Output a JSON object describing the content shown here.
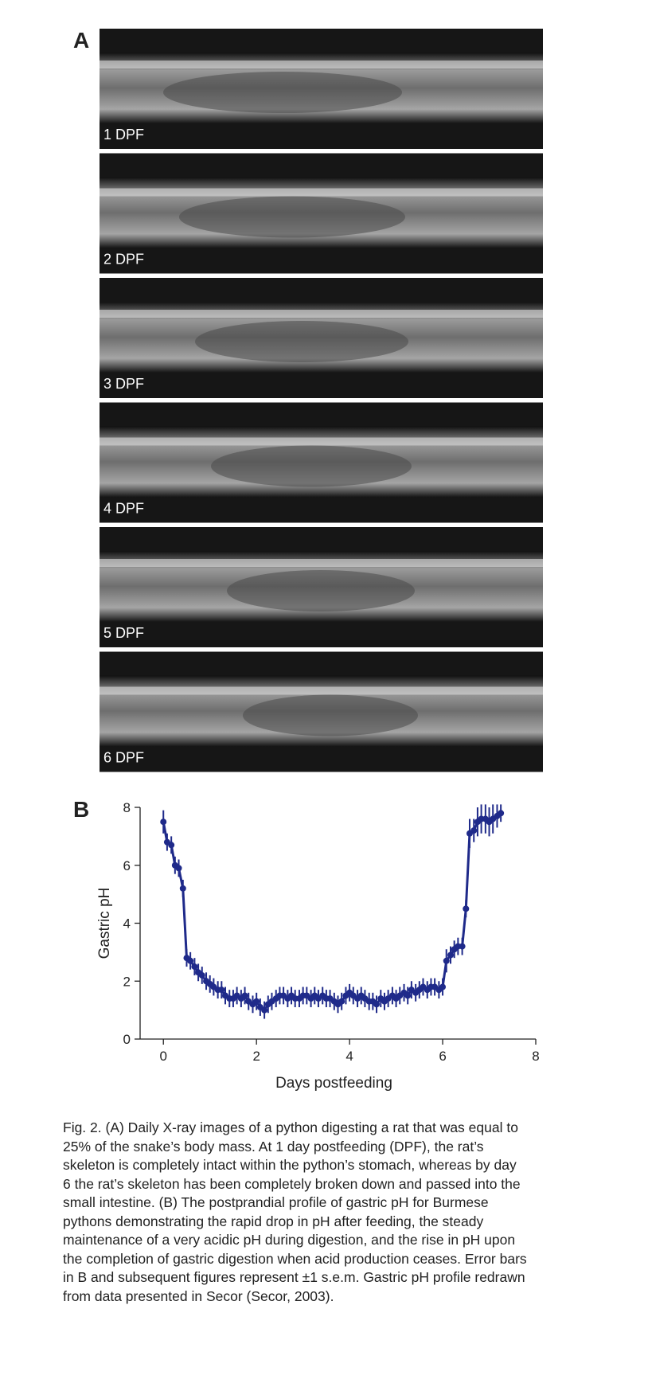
{
  "panel_a": {
    "label": "A",
    "images": [
      "1 DPF",
      "2 DPF",
      "3 DPF",
      "4 DPF",
      "5 DPF",
      "6 DPF"
    ]
  },
  "chart_data": {
    "type": "line",
    "panel_label": "B",
    "xlabel": "Days postfeeding",
    "ylabel": "Gastric pH",
    "color": "#1f2a8a",
    "x": [
      0,
      0.08,
      0.17,
      0.25,
      0.33,
      0.42,
      0.5,
      0.58,
      0.67,
      0.75,
      0.83,
      0.92,
      1,
      1.08,
      1.17,
      1.25,
      1.33,
      1.42,
      1.5,
      1.58,
      1.67,
      1.75,
      1.83,
      1.92,
      2,
      2.08,
      2.17,
      2.25,
      2.33,
      2.42,
      2.5,
      2.58,
      2.67,
      2.75,
      2.83,
      2.92,
      3,
      3.08,
      3.17,
      3.25,
      3.33,
      3.42,
      3.5,
      3.58,
      3.67,
      3.75,
      3.83,
      3.92,
      4,
      4.08,
      4.17,
      4.25,
      4.33,
      4.42,
      4.5,
      4.58,
      4.67,
      4.75,
      4.83,
      4.92,
      5,
      5.08,
      5.17,
      5.25,
      5.33,
      5.42,
      5.5,
      5.58,
      5.67,
      5.75,
      5.83,
      5.92,
      6,
      6.08,
      6.17,
      6.25,
      6.33,
      6.42,
      6.5,
      6.58,
      6.67,
      6.75,
      6.83,
      6.92,
      7,
      7.08,
      7.17,
      7.25
    ],
    "values": [
      7.5,
      6.8,
      6.7,
      6.0,
      5.9,
      5.2,
      2.8,
      2.7,
      2.5,
      2.3,
      2.2,
      2.0,
      1.9,
      1.8,
      1.7,
      1.7,
      1.5,
      1.4,
      1.4,
      1.5,
      1.4,
      1.5,
      1.3,
      1.2,
      1.3,
      1.1,
      1.0,
      1.2,
      1.3,
      1.4,
      1.5,
      1.5,
      1.4,
      1.5,
      1.4,
      1.4,
      1.5,
      1.5,
      1.4,
      1.5,
      1.4,
      1.5,
      1.4,
      1.4,
      1.3,
      1.2,
      1.3,
      1.5,
      1.6,
      1.5,
      1.4,
      1.5,
      1.4,
      1.3,
      1.3,
      1.2,
      1.4,
      1.3,
      1.4,
      1.5,
      1.4,
      1.5,
      1.6,
      1.5,
      1.7,
      1.6,
      1.7,
      1.8,
      1.7,
      1.8,
      1.8,
      1.7,
      1.8,
      2.7,
      2.9,
      3.1,
      3.2,
      3.2,
      4.5,
      7.1,
      7.2,
      7.5,
      7.6,
      7.6,
      7.5,
      7.6,
      7.7,
      7.8
    ],
    "errors": [
      0.4,
      0.3,
      0.3,
      0.3,
      0.3,
      0.3,
      0.3,
      0.3,
      0.3,
      0.3,
      0.3,
      0.3,
      0.3,
      0.3,
      0.3,
      0.3,
      0.3,
      0.3,
      0.3,
      0.3,
      0.3,
      0.3,
      0.3,
      0.3,
      0.3,
      0.3,
      0.3,
      0.3,
      0.3,
      0.3,
      0.3,
      0.3,
      0.3,
      0.3,
      0.3,
      0.3,
      0.3,
      0.3,
      0.3,
      0.3,
      0.3,
      0.3,
      0.3,
      0.3,
      0.3,
      0.3,
      0.3,
      0.3,
      0.3,
      0.3,
      0.3,
      0.3,
      0.3,
      0.3,
      0.3,
      0.3,
      0.3,
      0.3,
      0.3,
      0.3,
      0.3,
      0.3,
      0.3,
      0.3,
      0.3,
      0.3,
      0.3,
      0.3,
      0.3,
      0.3,
      0.3,
      0.3,
      0.3,
      0.4,
      0.3,
      0.3,
      0.3,
      0.3,
      0.3,
      0.5,
      0.4,
      0.5,
      0.5,
      0.5,
      0.5,
      0.5,
      0.4,
      0.3
    ],
    "xlim": [
      -0.5,
      8
    ],
    "ylim": [
      0,
      8
    ],
    "xticks": [
      0,
      2,
      4,
      6,
      8
    ],
    "yticks": [
      0,
      2,
      4,
      6,
      8
    ]
  },
  "caption": [
    "Fig. 2. (A) Daily X-ray images of a python digesting a rat that was equal to",
    "25% of the snake’s body mass. At 1 day postfeeding (DPF), the rat’s",
    "skeleton is completely intact within the python’s stomach, whereas by day",
    "6 the rat’s skeleton has been completely broken down and passed into the",
    "small intestine. (B) The postprandial profile of gastric pH for Burmese",
    "pythons demonstrating the rapid drop in pH after feeding, the steady",
    "maintenance of a very acidic pH during digestion, and the rise in pH upon",
    "the completion of gastric digestion when acid production ceases. Error bars",
    "in B and subsequent figures represent ±1 s.e.m. Gastric pH profile redrawn",
    "from data presented in Secor (Secor, 2003)."
  ]
}
